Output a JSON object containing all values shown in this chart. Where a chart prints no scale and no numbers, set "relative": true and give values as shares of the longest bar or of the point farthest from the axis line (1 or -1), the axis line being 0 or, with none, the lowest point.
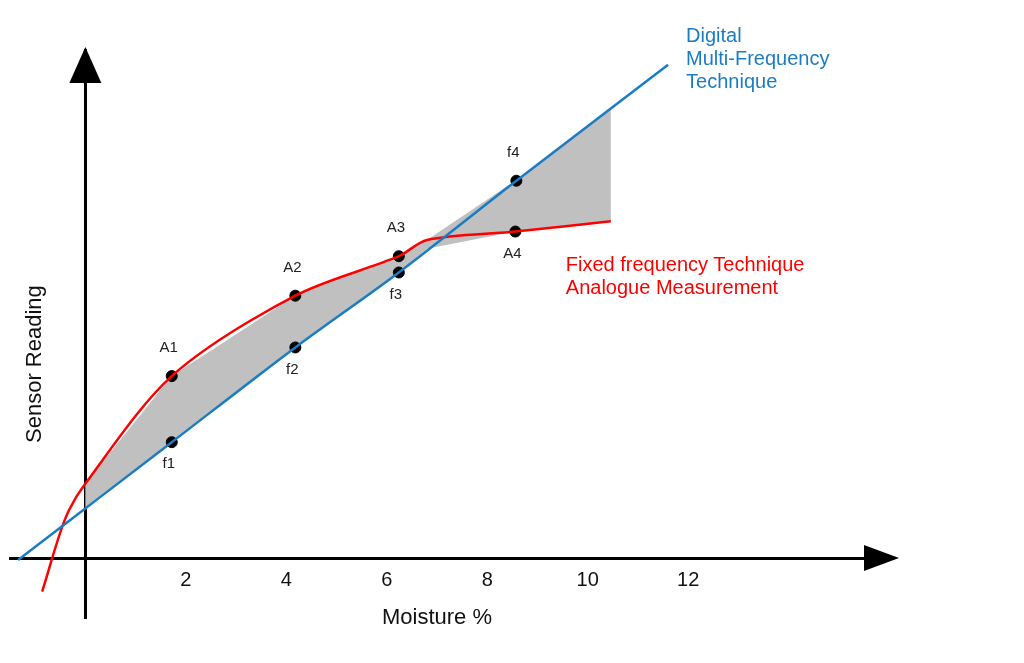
{
  "chart_data": {
    "type": "line",
    "relative": true,
    "xlabel": "Moisture %",
    "ylabel": "Sensor Reading",
    "xlim": [
      -1.5,
      15.5
    ],
    "xticks": [
      2,
      4,
      6,
      8,
      10,
      12
    ],
    "tick_labels": "x",
    "grid": false,
    "legend": false,
    "marker": "none",
    "series": [
      {
        "name": "Digital\nMulti-Frequency\nTechnique",
        "color": "#1a7dc4",
        "x": [
          -1.34,
          1.72,
          4.18,
          6.24,
          8.58,
          11.6
        ],
        "values": [
          -0.004,
          0.235,
          0.427,
          0.579,
          0.765,
          1
        ]
      },
      {
        "name": "Fixed frequency Technique\nAnalogue Measurement",
        "color": "#ff0000",
        "x": [
          -0.86,
          -0.4,
          0,
          1.72,
          4.18,
          6.24,
          6.8,
          8.56,
          10.46
        ],
        "values": [
          -0.068,
          0.08,
          0.151,
          0.369,
          0.532,
          0.612,
          0.645,
          0.662,
          0.683
        ],
        "lower": [
          null,
          null,
          0.1,
          0.235,
          0.427,
          0.579,
          0.627,
          0.662,
          0.683
        ],
        "upper": [
          null,
          null,
          0.151,
          0.369,
          0.532,
          0.612,
          0.645,
          0.765,
          0.911
        ]
      },
      {
        "type": "scatter",
        "marker": "circle",
        "color": "#000000",
        "x": [
          1.72,
          4.18,
          6.24,
          8.56,
          1.72,
          4.18,
          6.24,
          8.58
        ],
        "values": [
          0.369,
          0.532,
          0.612,
          0.662,
          0.235,
          0.427,
          0.579,
          0.765
        ]
      }
    ],
    "annotations": [
      {
        "text": "A1",
        "x": 1.72,
        "y": 0.369
      },
      {
        "text": "A2",
        "x": 4.18,
        "y": 0.532
      },
      {
        "text": "A3",
        "x": 6.24,
        "y": 0.612
      },
      {
        "text": "A4",
        "x": 8.56,
        "y": 0.662
      },
      {
        "text": "f1",
        "x": 1.72,
        "y": 0.235
      },
      {
        "text": "f2",
        "x": 4.18,
        "y": 0.427
      },
      {
        "text": "f3",
        "x": 6.24,
        "y": 0.579
      },
      {
        "text": "f4",
        "x": 8.58,
        "y": 0.765
      }
    ]
  }
}
